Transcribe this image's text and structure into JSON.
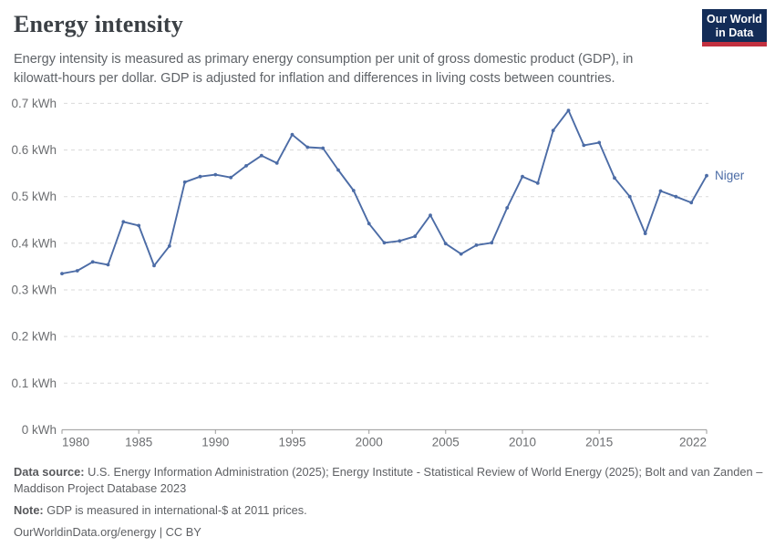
{
  "header": {
    "title": "Energy intensity",
    "subtitle_lines": [
      "Energy intensity is measured as primary energy consumption per unit of gross domestic product (GDP), in",
      "kilowatt-hours per dollar. GDP is adjusted for inflation and differences in living costs between countries."
    ],
    "logo": {
      "line1": "Our World",
      "line2": "in Data"
    }
  },
  "colors": {
    "line": "#4c6ca6",
    "series_label": "#4c6ca6",
    "grid": "#dadada",
    "axis": "#9a9a9a",
    "tick_text": "#6c6e71",
    "logo_navy": "#132c57",
    "logo_red": "#c2303f"
  },
  "chart_data": {
    "type": "line",
    "title": "Energy intensity",
    "unit": "kWh",
    "grid": "horizontal-dashed",
    "legend_position": "end-of-line-label",
    "xlim": [
      1980,
      2022
    ],
    "ylim": [
      0,
      0.7
    ],
    "xticks": [
      1980,
      1985,
      1990,
      1995,
      2000,
      2005,
      2010,
      2015,
      2022
    ],
    "yticks": [
      {
        "v": 0.0,
        "label": "0 kWh"
      },
      {
        "v": 0.1,
        "label": "0.1 kWh"
      },
      {
        "v": 0.2,
        "label": "0.2 kWh"
      },
      {
        "v": 0.3,
        "label": "0.3 kWh"
      },
      {
        "v": 0.4,
        "label": "0.4 kWh"
      },
      {
        "v": 0.5,
        "label": "0.5 kWh"
      },
      {
        "v": 0.6,
        "label": "0.6 kWh"
      },
      {
        "v": 0.7,
        "label": "0.7 kWh"
      }
    ],
    "x": [
      1980,
      1981,
      1982,
      1983,
      1984,
      1985,
      1986,
      1987,
      1988,
      1989,
      1990,
      1991,
      1992,
      1993,
      1994,
      1995,
      1996,
      1997,
      1998,
      1999,
      2000,
      2001,
      2002,
      2003,
      2004,
      2005,
      2006,
      2007,
      2008,
      2009,
      2010,
      2011,
      2012,
      2013,
      2014,
      2015,
      2016,
      2017,
      2018,
      2019,
      2020,
      2021,
      2022
    ],
    "series": [
      {
        "name": "Niger",
        "values": [
          0.335,
          0.341,
          0.36,
          0.354,
          0.446,
          0.438,
          0.352,
          0.394,
          0.531,
          0.543,
          0.547,
          0.541,
          0.566,
          0.588,
          0.572,
          0.633,
          0.606,
          0.604,
          0.557,
          0.513,
          0.442,
          0.401,
          0.405,
          0.415,
          0.46,
          0.399,
          0.377,
          0.396,
          0.401,
          0.476,
          0.543,
          0.529,
          0.642,
          0.685,
          0.61,
          0.616,
          0.54,
          0.5,
          0.421,
          0.512,
          0.5,
          0.487,
          0.545
        ]
      }
    ]
  },
  "footer": {
    "data_source_label": "Data source:",
    "data_source_text": "U.S. Energy Information Administration (2025); Energy Institute - Statistical Review of World Energy (2025); Bolt and van Zanden – Maddison Project Database 2023",
    "note_label": "Note:",
    "note_text": "GDP is measured in international-$ at 2011 prices.",
    "citation": "OurWorldinData.org/energy | CC BY"
  }
}
